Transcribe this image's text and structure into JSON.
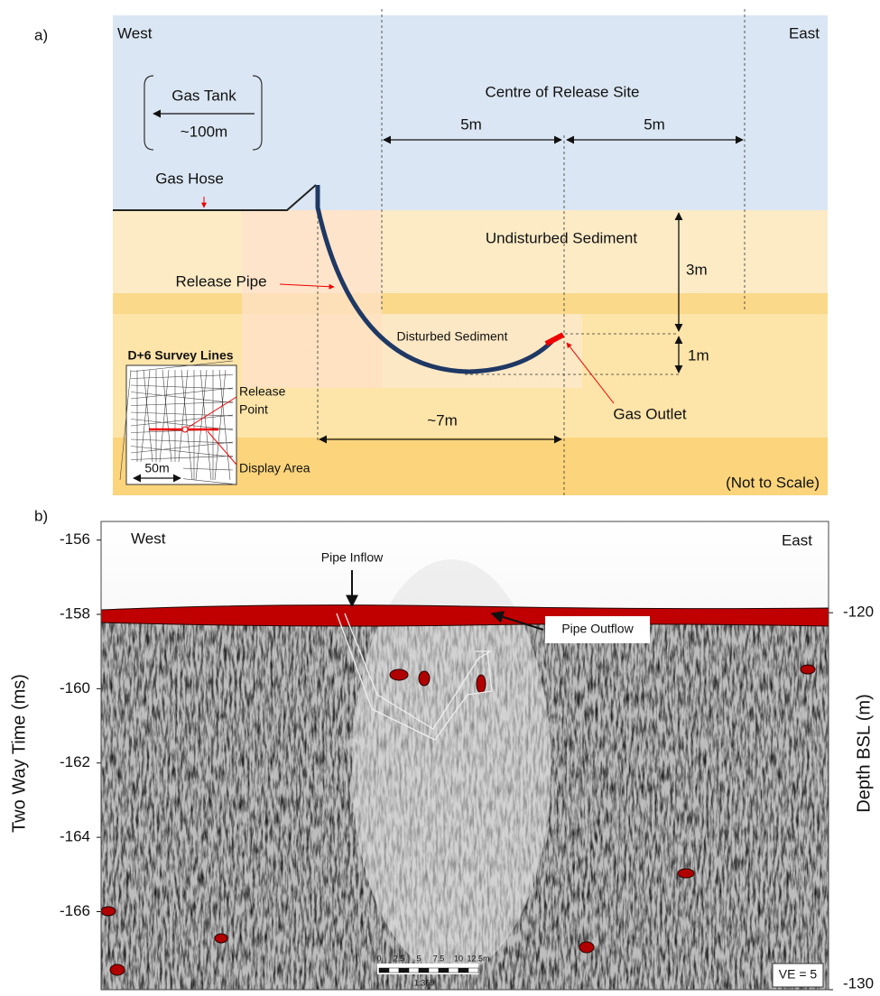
{
  "panel_a": {
    "label": "a)",
    "west": "West",
    "east": "East",
    "gas_tank": "Gas Tank",
    "tank_distance": "~100m",
    "centre": "Centre of Release Site",
    "left_span": "5m",
    "right_span": "5m",
    "gas_hose": "Gas Hose",
    "release_pipe": "Release Pipe",
    "undisturbed": "Undisturbed Sediment",
    "depth_upper": "3m",
    "depth_lower": "1m",
    "disturbed": "Disturbed Sediment",
    "gas_outlet": "Gas Outlet",
    "pipe_span": "~7m",
    "not_to_scale": "(Not to Scale)",
    "inset": {
      "title": "D+6 Survey Lines",
      "release_point": [
        "Release",
        "Point"
      ],
      "display_area": "Display Area",
      "scale": "50m"
    }
  },
  "panel_b": {
    "label": "b)",
    "west": "West",
    "east": "East",
    "pipe_inflow": "Pipe Inflow",
    "pipe_outflow": "Pipe Outflow",
    "ylabel": "Two Way Time (ms)",
    "y2label": "Depth BSL (m)",
    "ylim": [
      -155.5,
      -168.1
    ],
    "yticks": [
      -156,
      -158,
      -160,
      -162,
      -164,
      -166
    ],
    "y2lim": [
      -117.58,
      -130
    ],
    "y2ticks": [
      -120,
      -130
    ],
    "scale_bar": {
      "labels": [
        "0",
        "2.5",
        "5",
        "7.5",
        "10",
        "12.5m"
      ],
      "ratio": "1:369"
    },
    "ve": "VE = 5"
  }
}
